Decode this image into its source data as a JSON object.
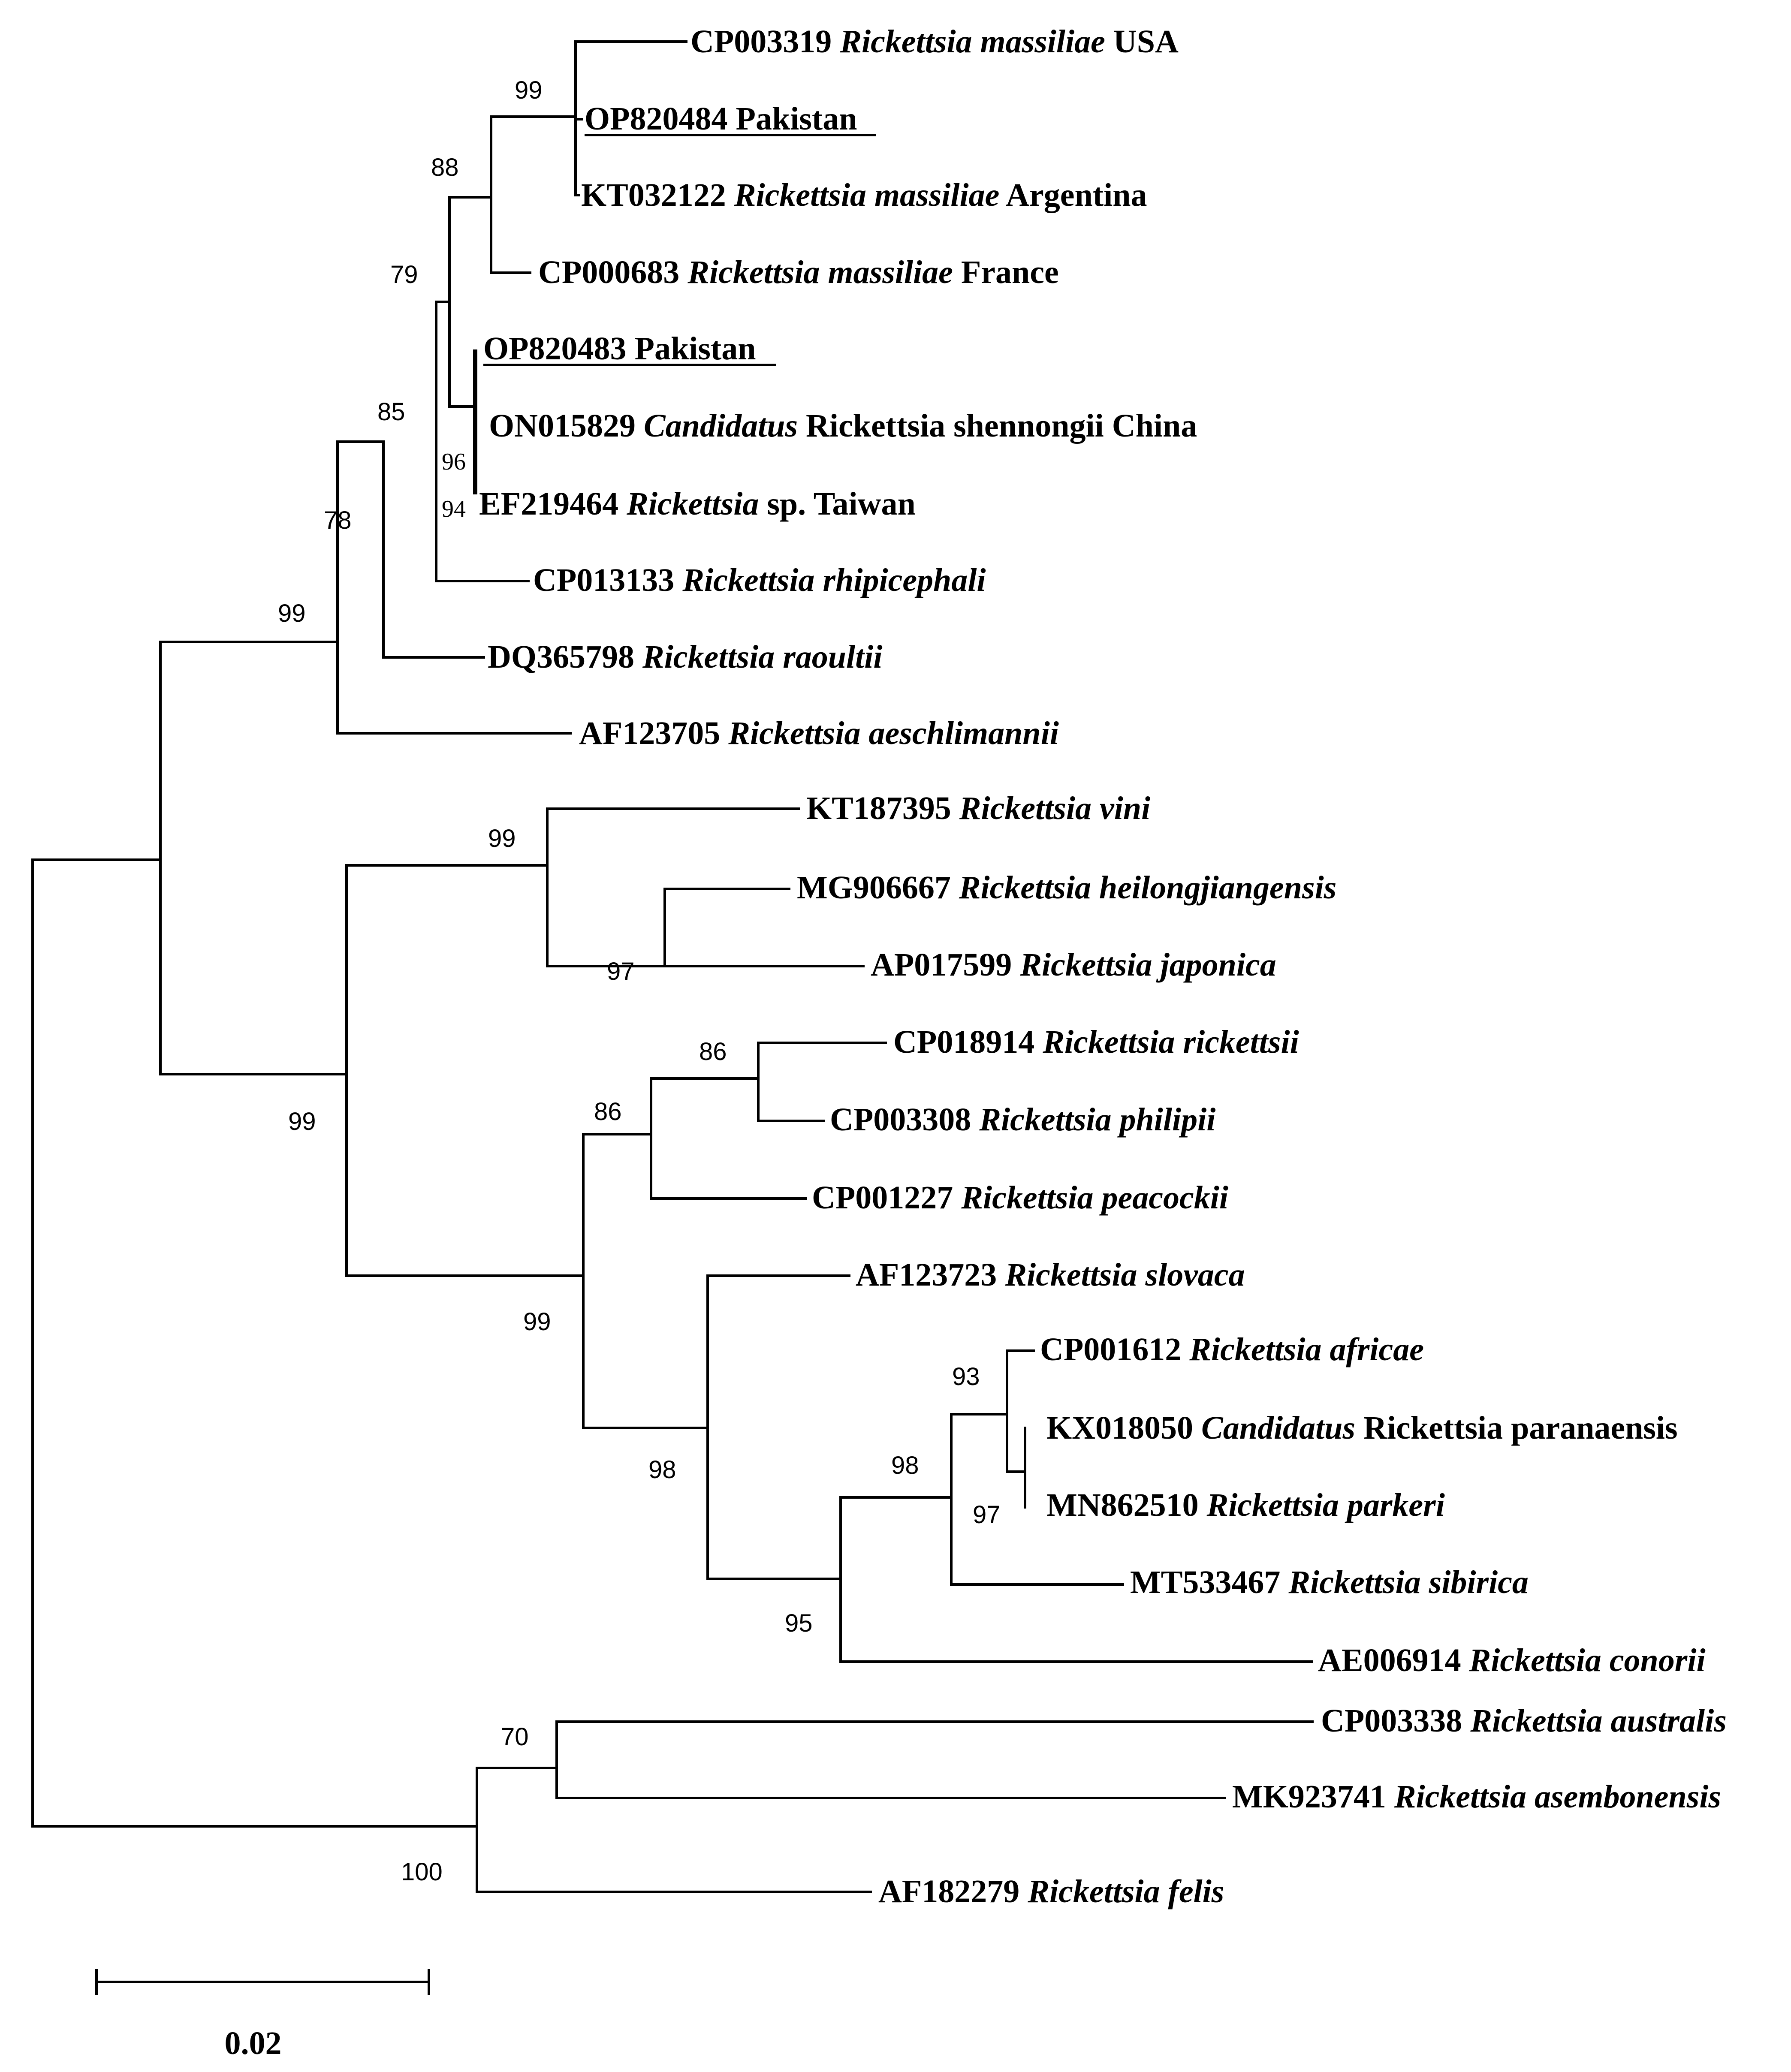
{
  "scale_bar": {
    "label": "0.02"
  },
  "leaves": {
    "CP003319": {
      "acc": "CP003319",
      "genus": "Rickettsia massiliae",
      "rest": "USA"
    },
    "OP820484": {
      "acc": "OP820484",
      "rest": "Pakistan",
      "underline": true
    },
    "KT032122": {
      "acc": "KT032122",
      "genus": "Rickettsia massiliae",
      "rest": "Argentina"
    },
    "CP000683": {
      "acc": "CP000683",
      "genus": "Rickettsia massiliae",
      "rest": "France"
    },
    "OP820483": {
      "acc": "OP820483",
      "rest": "Pakistan",
      "underline": true
    },
    "ON015829": {
      "acc": "ON015829",
      "genus": "Candidatus",
      "rest": "Rickettsia shennongii China"
    },
    "EF219464": {
      "acc": "EF219464",
      "genus": "Rickettsia",
      "rest": "sp. Taiwan"
    },
    "CP013133": {
      "acc": "CP013133",
      "genus": "Rickettsia rhipicephali"
    },
    "DQ365798": {
      "acc": "DQ365798",
      "genus": "Rickettsia raoultii"
    },
    "AF123705": {
      "acc": "AF123705",
      "genus": "Rickettsia aeschlimannii"
    },
    "KT187395": {
      "acc": "KT187395",
      "genus": "Rickettsia vini"
    },
    "MG906667": {
      "acc": "MG906667",
      "genus": "Rickettsia heilongjiangensis"
    },
    "AP017599": {
      "acc": "AP017599",
      "genus": "Rickettsia japonica"
    },
    "CP018914": {
      "acc": "CP018914",
      "genus": "Rickettsia rickettsii"
    },
    "CP003308": {
      "acc": "CP003308",
      "genus": "Rickettsia philipii"
    },
    "CP001227": {
      "acc": "CP001227",
      "genus": "Rickettsia peacockii"
    },
    "AF123723": {
      "acc": "AF123723",
      "genus": "Rickettsia slovaca"
    },
    "CP001612": {
      "acc": "CP001612",
      "genus": "Rickettsia africae"
    },
    "KX018050": {
      "acc": "KX018050",
      "genus": "Candidatus",
      "rest": "Rickettsia paranaensis"
    },
    "MN862510": {
      "acc": "MN862510",
      "genus": "Rickettsia parkeri"
    },
    "MT533467": {
      "acc": "MT533467",
      "genus": "Rickettsia sibirica"
    },
    "AE006914": {
      "acc": "AE006914",
      "genus": "Rickettsia conorii"
    },
    "CP003338": {
      "acc": "CP003338",
      "genus": "Rickettsia australis"
    },
    "MK923741": {
      "acc": "MK923741",
      "genus": "Rickettsia asembonensis"
    },
    "AF182279": {
      "acc": "AF182279",
      "genus": "Rickettsia felis"
    }
  },
  "bootstrap": {
    "massiliae_usa_arg": "99",
    "massiliae_group": "88",
    "massiliae_pak_clade": "79",
    "shennongii_pair": "96",
    "taiwan_pair": "94",
    "rhipicephali_group": "85",
    "raoultii_group": "78",
    "upper_clade": "99",
    "vini_group": "99",
    "heilong_japonica": "97",
    "main_sfg": "99",
    "rickettsii_philipii": "86",
    "rickettsii_group": "86",
    "lower_sfg": "99",
    "slovaca_group": "98",
    "africae_group": "98",
    "africae_pair": "93",
    "paranaensis_parkeri": "97",
    "conorii_group": "95",
    "australis_asembonensis": "70",
    "transitional_group": "100"
  }
}
